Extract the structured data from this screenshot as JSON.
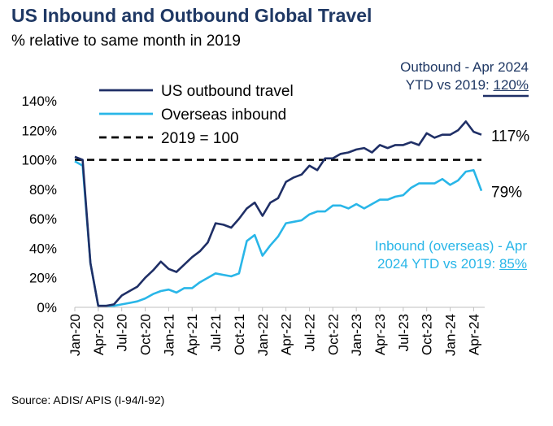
{
  "header": {
    "title": "US Inbound and Outbound Global Travel",
    "subtitle": "% relative to same month in 2019"
  },
  "annotations": {
    "outbound_line1": "Outbound - Apr 2024",
    "outbound_line2_prefix": "YTD vs 2019: ",
    "outbound_value": "120%",
    "inbound_line1": "Inbound (overseas) - Apr",
    "inbound_line2_prefix": "2024 YTD vs 2019: ",
    "inbound_value": "85%"
  },
  "source": "Source: ADIS/ APIS (I-94/I-92)",
  "colors": {
    "outbound": "#1f2f66",
    "inbound": "#29b6e8",
    "reference": "#000000",
    "title": "#1f3864"
  },
  "chart_data": {
    "type": "line",
    "x_ticks": [
      "Jan-20",
      "Apr-20",
      "Jul-20",
      "Oct-20",
      "Jan-21",
      "Apr-21",
      "Jul-21",
      "Oct-21",
      "Jan-22",
      "Apr-22",
      "Jul-22",
      "Oct-22",
      "Jan-23",
      "Apr-23",
      "Jul-23",
      "Oct-23",
      "Jan-24",
      "Apr-24"
    ],
    "ylim": [
      0,
      140
    ],
    "y_ticks": [
      0,
      20,
      40,
      60,
      80,
      100,
      120,
      140
    ],
    "y_tick_labels": [
      "0%",
      "20%",
      "40%",
      "60%",
      "80%",
      "100%",
      "120%",
      "140%"
    ],
    "legend_position": "top",
    "reference_line": {
      "name": "2019 = 100",
      "value": 100
    },
    "series": [
      {
        "name": "US outbound travel",
        "end_label": "117%",
        "values": [
          102,
          100,
          30,
          1,
          1,
          2,
          8,
          11,
          14,
          20,
          25,
          31,
          26,
          24,
          29,
          34,
          38,
          44,
          57,
          56,
          54,
          60,
          67,
          71,
          62,
          71,
          74,
          85,
          88,
          90,
          96,
          93,
          101,
          101,
          104,
          105,
          107,
          108,
          105,
          110,
          108,
          110,
          110,
          112,
          110,
          118,
          115,
          117,
          117,
          120,
          126,
          119,
          117
        ]
      },
      {
        "name": "Overseas inbound",
        "end_label": "79%",
        "values": [
          99,
          96,
          30,
          1,
          1,
          1,
          2,
          3,
          4,
          6,
          9,
          11,
          12,
          10,
          13,
          13,
          17,
          20,
          23,
          22,
          21,
          23,
          45,
          49,
          35,
          42,
          48,
          57,
          58,
          59,
          63,
          65,
          65,
          69,
          69,
          67,
          70,
          67,
          70,
          73,
          73,
          75,
          76,
          81,
          84,
          84,
          84,
          87,
          83,
          86,
          92,
          93,
          79
        ]
      }
    ]
  }
}
